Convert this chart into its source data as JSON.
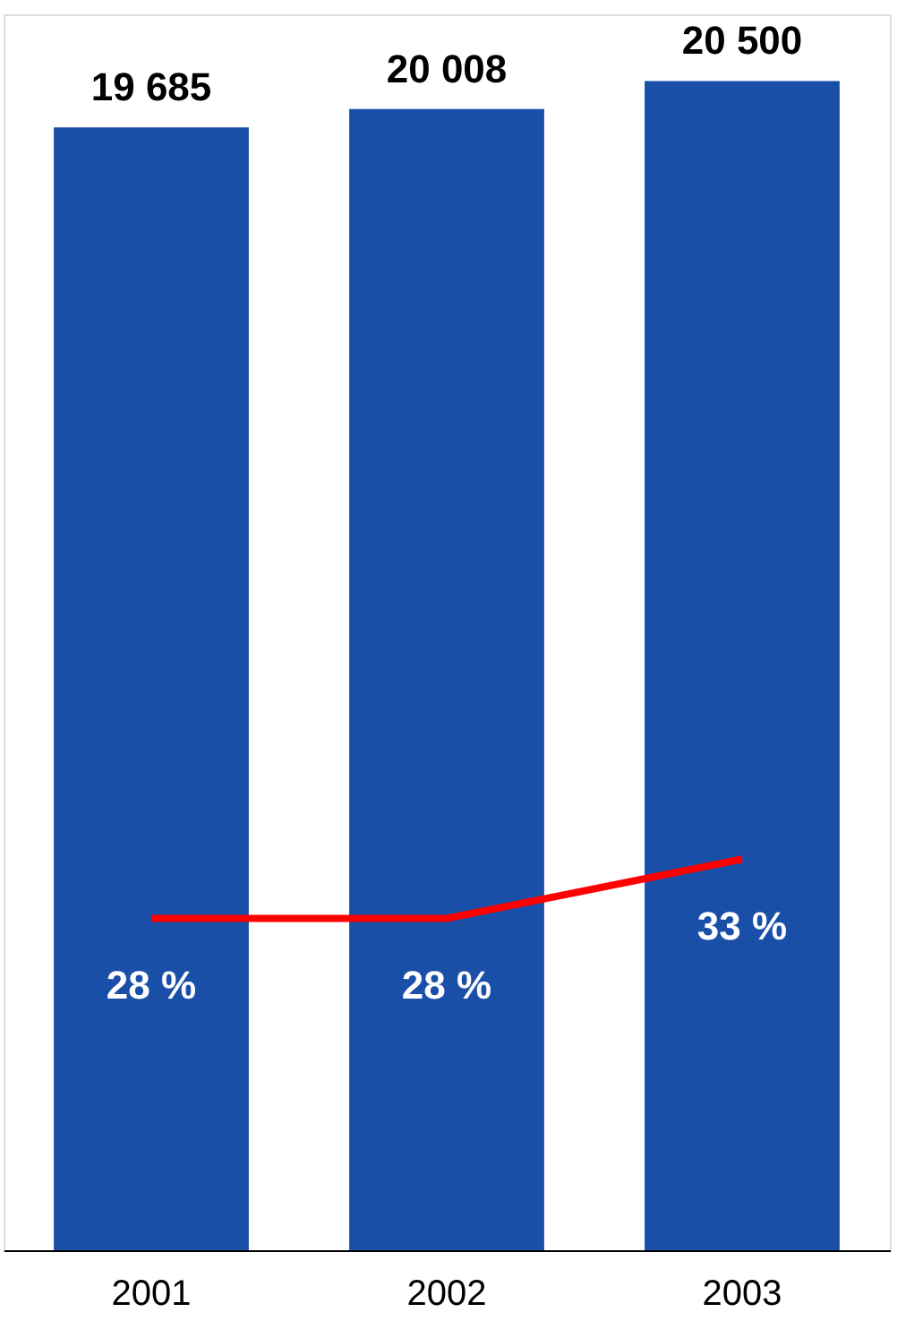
{
  "chart_data": {
    "type": "bar",
    "categories": [
      "2001",
      "2002",
      "2003"
    ],
    "data_labels": true,
    "series": [
      {
        "color": "#1a4fa8",
        "values": [
          19685,
          20008,
          20500
        ],
        "value_labels": [
          "19 685",
          "20 008",
          "20 500"
        ]
      },
      {
        "type": "line",
        "axis": "y2",
        "color": "#ff0000",
        "values": [
          28,
          28,
          33
        ],
        "value_labels": [
          "28 %",
          "28 %",
          "33 %"
        ],
        "marker": "none",
        "line_style": "solid"
      }
    ]
  }
}
